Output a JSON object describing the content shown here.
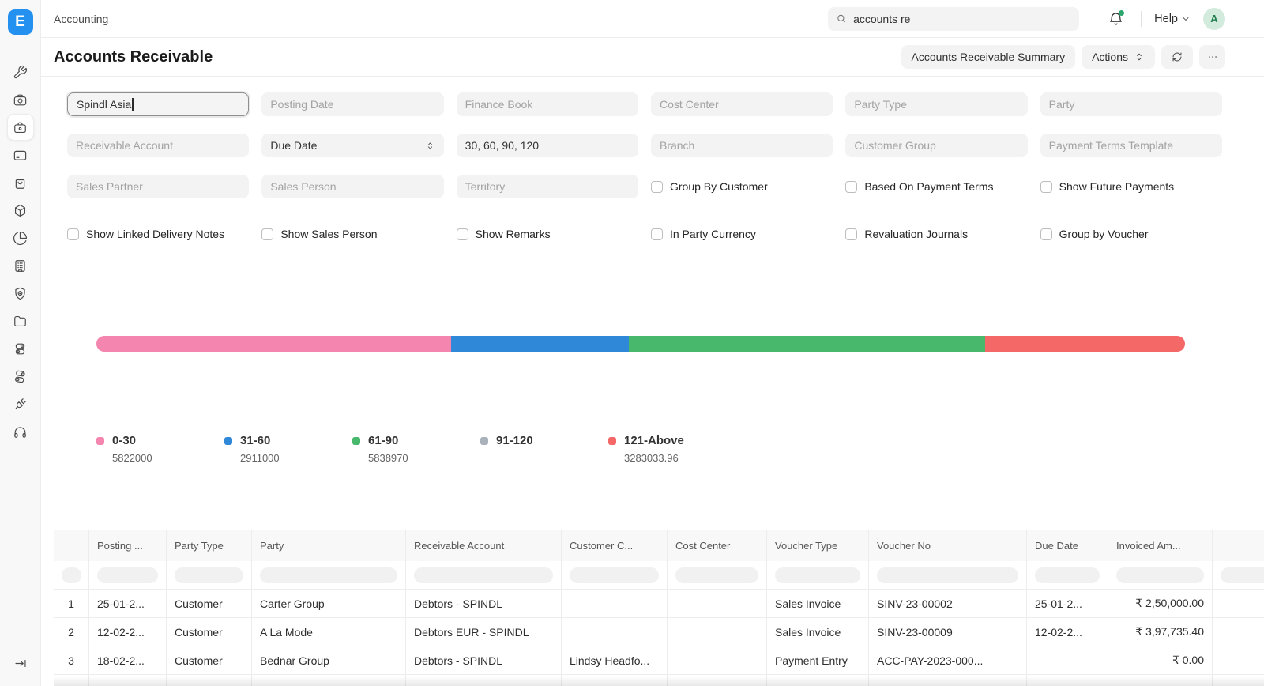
{
  "nav": {
    "breadcrumb": "Accounting",
    "search_value": "accounts re",
    "help_label": "Help",
    "avatar_initial": "A",
    "colors": {
      "logo_bg": "#2490EF",
      "bell_dot": "#29A56C",
      "avatar_bg": "#D2EBDD",
      "avatar_text": "#1C7C4C"
    }
  },
  "sidebar": {
    "icons": [
      "tools-icon",
      "camera-icon",
      "toolbox-icon",
      "card-icon",
      "shopping-bag-icon",
      "package-icon",
      "pie-chart-icon",
      "building-icon",
      "shield-check-icon",
      "folder-icon",
      "toggles-icon",
      "toggles-alt-icon",
      "plug-icon",
      "headphones-icon"
    ],
    "active_icon": "toolbox-icon"
  },
  "header": {
    "title": "Accounts Receivable",
    "summary_button": "Accounts Receivable Summary",
    "actions_button": "Actions"
  },
  "filters": {
    "company": {
      "value": "Spindl Asia"
    },
    "posting_date": {
      "placeholder": "Posting Date"
    },
    "finance_book": {
      "placeholder": "Finance Book"
    },
    "cost_center": {
      "placeholder": "Cost Center"
    },
    "party_type": {
      "placeholder": "Party Type"
    },
    "party": {
      "placeholder": "Party"
    },
    "receivable_account": {
      "placeholder": "Receivable Account"
    },
    "ageing_based_on": {
      "value": "Due Date"
    },
    "ageing_range": {
      "value": "30, 60, 90, 120"
    },
    "branch": {
      "placeholder": "Branch"
    },
    "customer_group": {
      "placeholder": "Customer Group"
    },
    "payment_terms_template": {
      "placeholder": "Payment Terms Template"
    },
    "sales_partner": {
      "placeholder": "Sales Partner"
    },
    "sales_person": {
      "placeholder": "Sales Person"
    },
    "territory": {
      "placeholder": "Territory"
    }
  },
  "checkboxes": {
    "group_by_customer": "Group By Customer",
    "based_on_payment_terms": "Based On Payment Terms",
    "show_future_payments": "Show Future Payments",
    "show_linked_delivery_notes": "Show Linked Delivery Notes",
    "show_sales_person": "Show Sales Person",
    "show_remarks": "Show Remarks",
    "in_party_currency": "In Party Currency",
    "revaluation_journals": "Revaluation Journals",
    "group_by_voucher": "Group by Voucher"
  },
  "chart_data": {
    "type": "bar",
    "stacked": true,
    "orientation": "horizontal",
    "title": "",
    "categories": [
      "0-30",
      "31-60",
      "61-90",
      "91-120",
      "121-Above"
    ],
    "values": [
      5822000,
      2911000,
      5838970,
      0,
      3283033.96
    ],
    "display_values": [
      "5822000",
      "2911000",
      "5838970",
      "",
      "3283033.96"
    ],
    "colors": [
      "#F485AE",
      "#2F88D8",
      "#48B86C",
      "#A9B1BA",
      "#F46868"
    ],
    "legend_position": "bottom"
  },
  "table": {
    "columns": [
      "",
      "Posting ...",
      "Party Type",
      "Party",
      "Receivable Account",
      "Customer C...",
      "Cost Center",
      "Voucher Type",
      "Voucher No",
      "Due Date",
      "Invoiced Am...",
      ""
    ],
    "rows": [
      [
        "1",
        "25-01-2...",
        "Customer",
        "Carter Group",
        "Debtors - SPINDL",
        "",
        "",
        "Sales Invoice",
        "SINV-23-00002",
        "25-01-2...",
        "₹ 2,50,000.00",
        ""
      ],
      [
        "2",
        "12-02-2...",
        "Customer",
        "A La Mode",
        "Debtors EUR - SPINDL",
        "",
        "",
        "Sales Invoice",
        "SINV-23-00009",
        "12-02-2...",
        "₹ 3,97,735.40",
        ""
      ],
      [
        "3",
        "18-02-2...",
        "Customer",
        "Bednar Group",
        "Debtors - SPINDL",
        "Lindsy Headfo...",
        "",
        "Payment Entry",
        "ACC-PAY-2023-000...",
        "",
        "₹ 0.00",
        ""
      ]
    ]
  }
}
